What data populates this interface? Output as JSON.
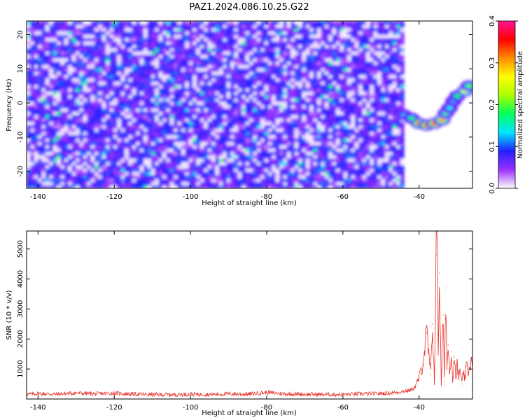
{
  "title": "PAZ1.2024.086.10.25.G22",
  "chart_data": [
    {
      "type": "heatmap",
      "xlabel": "Height of straight line (km)",
      "ylabel": "Frequency (Hz)",
      "xlim": [
        -143,
        -26
      ],
      "ylim": [
        -25,
        24
      ],
      "xticks": [
        -140,
        -120,
        -100,
        -80,
        -60,
        -40
      ],
      "yticks": [
        -20,
        -10,
        0,
        10,
        20
      ],
      "data_extent_x": [
        -143,
        -44
      ],
      "colorbar": {
        "label": "Normalized spectral amplitude",
        "range": [
          0.0,
          0.4
        ],
        "ticks": [
          0.0,
          0.1,
          0.2,
          0.3,
          0.4
        ],
        "colors": [
          "#ffffff",
          "#9b30ff",
          "#2020ff",
          "#00e5ff",
          "#00ff60",
          "#aaff00",
          "#ffff00",
          "#ff8c00",
          "#ff0000",
          "#ff1493"
        ]
      },
      "ridge": [
        {
          "x": -46,
          "y": -2.5,
          "value": 0.08
        },
        {
          "x": -44,
          "y": -3.5,
          "value": 0.12
        },
        {
          "x": -42,
          "y": -4.5,
          "value": 0.18
        },
        {
          "x": -40,
          "y": -6.0,
          "value": 0.33
        },
        {
          "x": -38,
          "y": -6.5,
          "value": 0.36
        },
        {
          "x": -36,
          "y": -6.0,
          "value": 0.38
        },
        {
          "x": -34,
          "y": -5.0,
          "value": 0.3
        },
        {
          "x": -33,
          "y": -3.0,
          "value": 0.2
        },
        {
          "x": -32,
          "y": -1.5,
          "value": 0.14
        },
        {
          "x": -31,
          "y": 0.5,
          "value": 0.12
        },
        {
          "x": -30,
          "y": 2.0,
          "value": 0.18
        },
        {
          "x": -28,
          "y": 3.5,
          "value": 0.26
        },
        {
          "x": -27,
          "y": 5.0,
          "value": 0.2
        }
      ]
    },
    {
      "type": "line",
      "xlabel": "Height of straight line (km)",
      "ylabel": "SNR (10 * v/v)",
      "xlim": [
        -143,
        -26
      ],
      "ylim": [
        0,
        5600
      ],
      "xticks": [
        -140,
        -120,
        -100,
        -80,
        -60,
        -40
      ],
      "yticks": [
        1000,
        2000,
        3000,
        4000,
        5000
      ],
      "color": "#e8332d",
      "x": [
        -143,
        -140,
        -135,
        -130,
        -125,
        -120,
        -115,
        -110,
        -105,
        -100,
        -95,
        -90,
        -85,
        -80,
        -75,
        -70,
        -65,
        -60,
        -55,
        -50,
        -46,
        -44,
        -42,
        -41,
        -40,
        -39,
        -38,
        -37.5,
        -37,
        -36.5,
        -36,
        -35.5,
        -35.2,
        -35,
        -34.7,
        -34.4,
        -34.2,
        -34,
        -33.7,
        -33.4,
        -33,
        -32.7,
        -32.4,
        -32,
        -31.6,
        -31.2,
        -30.8,
        -30.4,
        -30,
        -29.6,
        -29.2,
        -28.8,
        -28.4,
        -28,
        -27.5,
        -27,
        -26.5,
        -26
      ],
      "y": [
        150,
        180,
        160,
        200,
        170,
        190,
        160,
        150,
        140,
        160,
        150,
        170,
        160,
        220,
        170,
        160,
        150,
        150,
        170,
        180,
        220,
        260,
        300,
        420,
        700,
        1200,
        2200,
        1500,
        800,
        2500,
        600,
        4800,
        5600,
        1500,
        4200,
        1800,
        500,
        1200,
        2800,
        600,
        3700,
        1000,
        1800,
        900,
        1600,
        700,
        1400,
        800,
        1100,
        650,
        1000,
        500,
        800,
        700,
        1100,
        900,
        1300,
        1100
      ]
    }
  ]
}
